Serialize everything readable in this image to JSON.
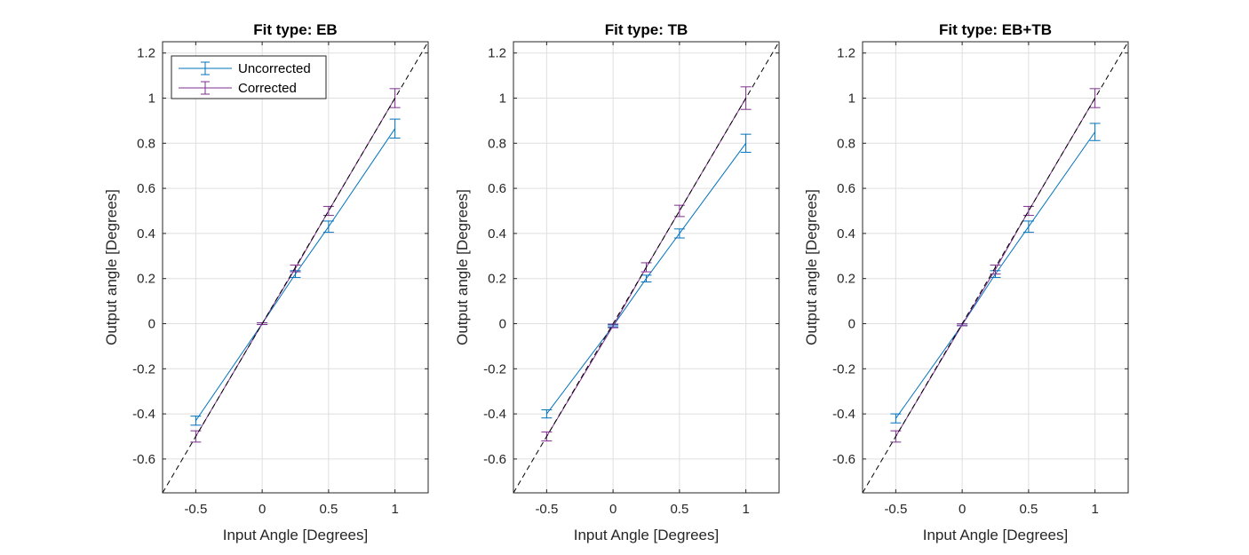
{
  "colors": {
    "uncorrected": "#0072BD",
    "corrected": "#7E2F8E",
    "reference": "#000000",
    "grid": "#dfdfdf",
    "axis": "#262626"
  },
  "chart_data": [
    {
      "type": "line",
      "title": "Fit type: EB",
      "xlabel": "Input Angle [Degrees]",
      "ylabel": "Output angle [Degrees]",
      "xlim": [
        -0.75,
        1.25
      ],
      "ylim": [
        -0.75,
        1.25
      ],
      "xticks": [
        "-0.5",
        "0",
        "0.5",
        "1"
      ],
      "yticks": [
        "-0.6",
        "-0.4",
        "-0.2",
        "0",
        "0.2",
        "0.4",
        "0.6",
        "0.8",
        "1",
        "1.2"
      ],
      "grid": true,
      "legend": {
        "placement": "top-left",
        "entries": [
          "Uncorrected",
          "Corrected"
        ]
      },
      "reference_line": "y = x (dashed)",
      "x": [
        -0.5,
        0,
        0.25,
        0.5,
        1
      ],
      "series": [
        {
          "name": "Uncorrected",
          "values": [
            -0.43,
            0,
            0.22,
            0.43,
            0.865
          ],
          "errors": [
            0.02,
            0.004,
            0.015,
            0.025,
            0.042
          ]
        },
        {
          "name": "Corrected",
          "values": [
            -0.5,
            0,
            0.245,
            0.5,
            1.0
          ],
          "errors": [
            0.025,
            0.004,
            0.015,
            0.02,
            0.042
          ]
        }
      ]
    },
    {
      "type": "line",
      "title": "Fit type: TB",
      "xlabel": "Input Angle [Degrees]",
      "ylabel": "Output angle [Degrees]",
      "xlim": [
        -0.75,
        1.25
      ],
      "ylim": [
        -0.75,
        1.25
      ],
      "xticks": [
        "-0.5",
        "0",
        "0.5",
        "1"
      ],
      "yticks": [
        "-0.6",
        "-0.4",
        "-0.2",
        "0",
        "0.2",
        "0.4",
        "0.6",
        "0.8",
        "1",
        "1.2"
      ],
      "grid": true,
      "legend": null,
      "reference_line": "y = x (dashed)",
      "x": [
        -0.5,
        0,
        0.25,
        0.5,
        1
      ],
      "series": [
        {
          "name": "Uncorrected",
          "values": [
            -0.4,
            -0.01,
            0.2,
            0.4,
            0.8
          ],
          "errors": [
            0.018,
            0.004,
            0.015,
            0.02,
            0.04
          ]
        },
        {
          "name": "Corrected",
          "values": [
            -0.5,
            -0.01,
            0.25,
            0.5,
            1.0
          ],
          "errors": [
            0.02,
            0.008,
            0.02,
            0.025,
            0.05
          ]
        }
      ]
    },
    {
      "type": "line",
      "title": "Fit type: EB+TB",
      "xlabel": "Input Angle [Degrees]",
      "ylabel": "Output angle [Degrees]",
      "xlim": [
        -0.75,
        1.25
      ],
      "ylim": [
        -0.75,
        1.25
      ],
      "xticks": [
        "-0.5",
        "0",
        "0.5",
        "1"
      ],
      "yticks": [
        "-0.6",
        "-0.4",
        "-0.2",
        "0",
        "0.2",
        "0.4",
        "0.6",
        "0.8",
        "1",
        "1.2"
      ],
      "grid": true,
      "legend": null,
      "reference_line": "y = x (dashed)",
      "x": [
        -0.5,
        0,
        0.25,
        0.5,
        1
      ],
      "series": [
        {
          "name": "Uncorrected",
          "values": [
            -0.42,
            -0.005,
            0.22,
            0.43,
            0.85
          ],
          "errors": [
            0.02,
            0.004,
            0.015,
            0.025,
            0.038
          ]
        },
        {
          "name": "Corrected",
          "values": [
            -0.5,
            -0.005,
            0.24,
            0.5,
            1.0
          ],
          "errors": [
            0.025,
            0.004,
            0.02,
            0.02,
            0.042
          ]
        }
      ]
    }
  ]
}
